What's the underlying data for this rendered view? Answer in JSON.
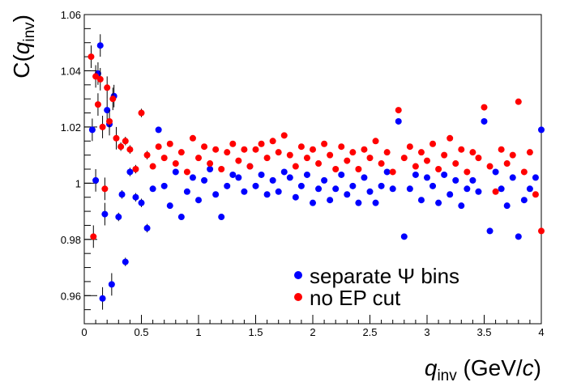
{
  "chart_data": {
    "type": "scatter",
    "title": "",
    "xlabel": {
      "main": "q",
      "sub": "inv",
      "unit_open": " (GeV/",
      "unit_var": "c",
      "unit_close": ")"
    },
    "ylabel": {
      "prefix": "C(",
      "main": "q",
      "sub": "inv",
      "suffix": ")"
    },
    "xlim": [
      0,
      4
    ],
    "ylim": [
      0.95,
      1.06
    ],
    "grid": false,
    "legend_position": "bottom-right",
    "xticks": [
      {
        "value": 0,
        "label": "0"
      },
      {
        "value": 0.5,
        "label": "0.5"
      },
      {
        "value": 1,
        "label": "1"
      },
      {
        "value": 1.5,
        "label": "1.5"
      },
      {
        "value": 2,
        "label": "2"
      },
      {
        "value": 2.5,
        "label": "2.5"
      },
      {
        "value": 3,
        "label": "3"
      },
      {
        "value": 3.5,
        "label": "3.5"
      },
      {
        "value": 4,
        "label": "4"
      }
    ],
    "yticks": [
      {
        "value": 0.96,
        "label": "0.96"
      },
      {
        "value": 0.98,
        "label": "0.98"
      },
      {
        "value": 1.0,
        "label": "1"
      },
      {
        "value": 1.02,
        "label": "1.02"
      },
      {
        "value": 1.04,
        "label": "1.04"
      },
      {
        "value": 1.06,
        "label": "1.06"
      }
    ],
    "series": [
      {
        "name": "separate Ψ bins",
        "color": "#0000ff",
        "marker": "circle",
        "x": [
          0.07,
          0.1,
          0.12,
          0.14,
          0.16,
          0.18,
          0.2,
          0.22,
          0.24,
          0.26,
          0.3,
          0.33,
          0.36,
          0.4,
          0.45,
          0.5,
          0.55,
          0.6,
          0.65,
          0.7,
          0.75,
          0.8,
          0.85,
          0.9,
          0.95,
          1.0,
          1.05,
          1.1,
          1.15,
          1.2,
          1.25,
          1.3,
          1.35,
          1.4,
          1.45,
          1.5,
          1.55,
          1.6,
          1.65,
          1.7,
          1.75,
          1.8,
          1.85,
          1.9,
          1.95,
          2.0,
          2.05,
          2.1,
          2.15,
          2.2,
          2.25,
          2.3,
          2.35,
          2.4,
          2.45,
          2.5,
          2.55,
          2.6,
          2.65,
          2.7,
          2.75,
          2.8,
          2.85,
          2.9,
          2.95,
          3.0,
          3.05,
          3.1,
          3.15,
          3.2,
          3.25,
          3.3,
          3.35,
          3.4,
          3.45,
          3.5,
          3.55,
          3.6,
          3.65,
          3.7,
          3.75,
          3.8,
          3.85,
          3.9,
          3.95,
          4.0
        ],
        "y": [
          1.019,
          1.001,
          1.039,
          1.049,
          0.959,
          0.989,
          1.026,
          1.021,
          0.964,
          1.031,
          0.988,
          0.996,
          0.972,
          1.004,
          0.995,
          0.993,
          0.984,
          0.998,
          1.019,
          0.999,
          0.992,
          1.004,
          0.988,
          0.997,
          1.002,
          0.994,
          1.001,
          1.005,
          0.996,
          0.988,
          0.999,
          1.003,
          1.002,
          0.997,
          1.006,
          0.999,
          1.003,
          0.996,
          1.001,
          0.997,
          1.004,
          1.002,
          0.995,
          0.999,
          1.003,
          0.993,
          0.998,
          1.001,
          0.994,
          0.998,
          1.003,
          0.996,
          0.999,
          0.993,
          1.002,
          0.997,
          0.993,
          0.999,
          1.004,
          0.998,
          1.022,
          0.981,
          0.998,
          1.003,
          0.994,
          1.002,
          0.999,
          0.993,
          1.003,
          0.996,
          1.001,
          0.992,
          0.998,
          1.001,
          0.997,
          1.022,
          0.983,
          1.004,
          0.998,
          0.992,
          1.002,
          0.981,
          0.994,
          0.998,
          1.002,
          1.019
        ]
      },
      {
        "name": "no EP cut",
        "color": "#ff0000",
        "marker": "circle",
        "x": [
          0.06,
          0.08,
          0.1,
          0.12,
          0.14,
          0.16,
          0.18,
          0.2,
          0.22,
          0.25,
          0.28,
          0.32,
          0.36,
          0.4,
          0.45,
          0.5,
          0.55,
          0.6,
          0.65,
          0.7,
          0.75,
          0.8,
          0.85,
          0.9,
          0.95,
          1.0,
          1.05,
          1.1,
          1.15,
          1.2,
          1.25,
          1.3,
          1.35,
          1.4,
          1.45,
          1.5,
          1.55,
          1.6,
          1.65,
          1.7,
          1.75,
          1.8,
          1.85,
          1.9,
          1.95,
          2.0,
          2.05,
          2.1,
          2.15,
          2.2,
          2.25,
          2.3,
          2.35,
          2.4,
          2.45,
          2.5,
          2.55,
          2.6,
          2.65,
          2.7,
          2.75,
          2.8,
          2.85,
          2.9,
          2.95,
          3.0,
          3.05,
          3.1,
          3.15,
          3.2,
          3.25,
          3.3,
          3.35,
          3.4,
          3.45,
          3.5,
          3.55,
          3.6,
          3.65,
          3.7,
          3.75,
          3.8,
          3.85,
          3.9,
          3.95,
          4.0
        ],
        "y": [
          1.045,
          0.981,
          1.038,
          1.028,
          1.037,
          1.02,
          0.998,
          1.034,
          1.022,
          1.03,
          1.016,
          1.013,
          1.015,
          1.012,
          1.005,
          1.025,
          1.01,
          1.006,
          1.013,
          1.009,
          1.014,
          1.007,
          1.011,
          1.004,
          1.016,
          1.009,
          1.013,
          1.007,
          1.012,
          1.005,
          1.011,
          1.014,
          1.008,
          1.012,
          1.006,
          1.012,
          1.014,
          1.009,
          1.015,
          1.011,
          1.017,
          1.01,
          1.006,
          1.013,
          1.009,
          1.012,
          1.007,
          1.014,
          1.01,
          1.005,
          1.013,
          1.008,
          1.011,
          1.005,
          1.012,
          1.009,
          1.015,
          1.007,
          1.011,
          1.004,
          1.026,
          1.009,
          1.013,
          1.006,
          1.011,
          1.008,
          1.014,
          1.005,
          1.01,
          1.016,
          1.007,
          1.012,
          1.004,
          1.011,
          1.009,
          1.027,
          1.006,
          0.997,
          1.012,
          1.007,
          1.01,
          1.029,
          1.004,
          1.011,
          0.996,
          0.983
        ]
      }
    ]
  }
}
